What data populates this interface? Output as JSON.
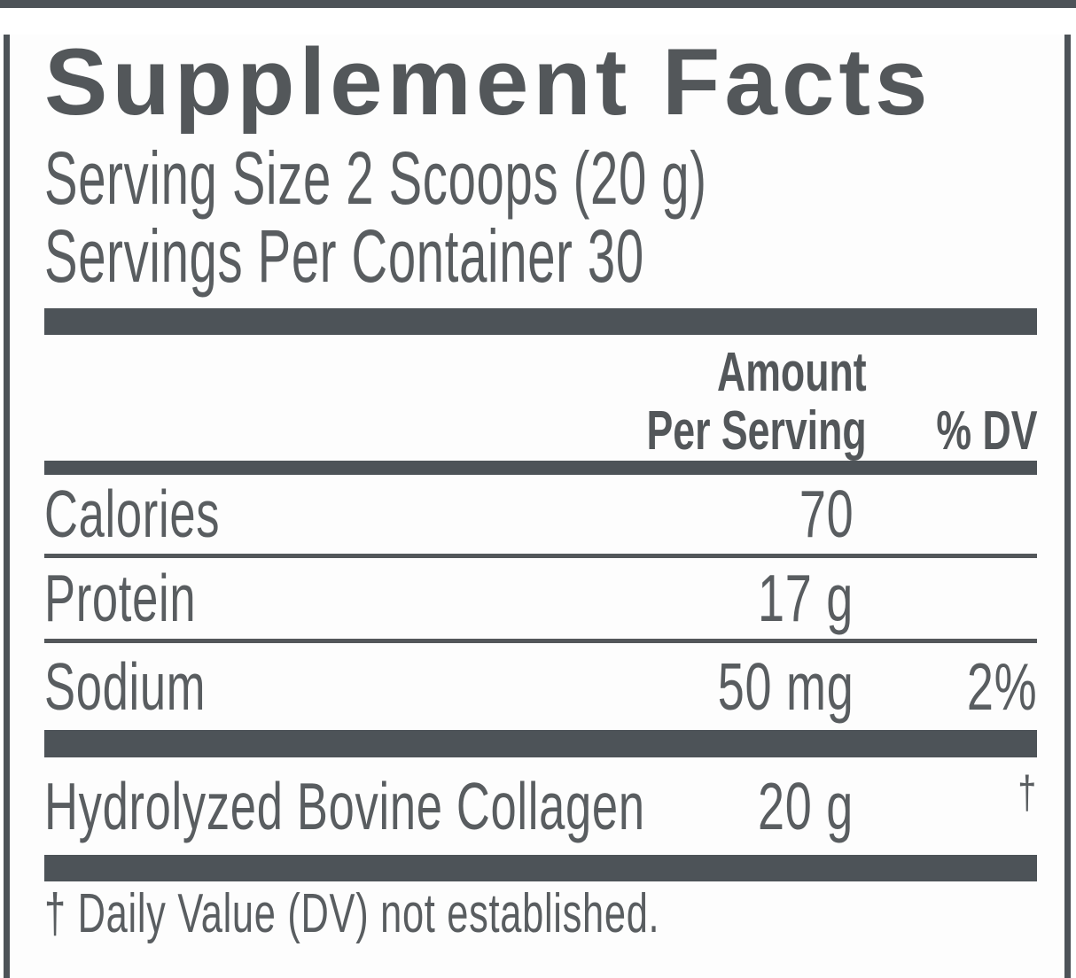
{
  "label": {
    "title": "Supplement Facts",
    "serving_size": "Serving Size 2 Scoops (20 g)",
    "servings_per_container": "Servings Per Container 30",
    "columns": {
      "amount_header_line1": "Amount",
      "amount_header_line2": "Per Serving",
      "dv_header": "% DV"
    },
    "rows": [
      {
        "name": "Calories",
        "amount": "70",
        "dv": ""
      },
      {
        "name": "Protein",
        "amount": "17 g",
        "dv": ""
      },
      {
        "name": "Sodium",
        "amount": "50 mg",
        "dv": "2%"
      },
      {
        "name": "Hydrolyzed Bovine Collagen",
        "amount": "20 g",
        "dv": "†"
      }
    ],
    "footnote": "† Daily Value (DV) not established.",
    "colors": {
      "ink": "#54585b",
      "bar": "#4d5358",
      "background": "#fdfdfd"
    }
  }
}
